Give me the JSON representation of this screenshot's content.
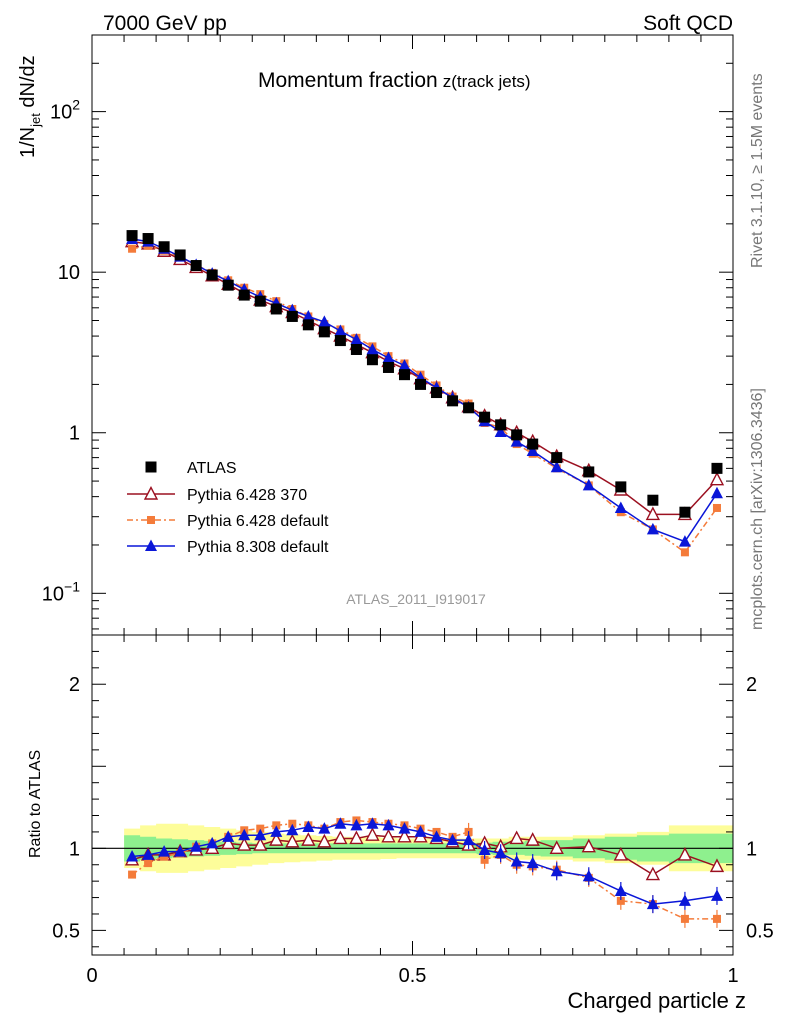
{
  "header": {
    "energy": "7000 GeV pp",
    "process": "Soft QCD",
    "rivet": "Rivet 3.1.10, ≥ 1.5M events",
    "mcplots": "mcplots.cern.ch [arXiv:1306.3436]",
    "analysis": "ATLAS_2011_I919017"
  },
  "chart_data": {
    "type": "line",
    "title": "Momentum fraction",
    "title_sub": "z(track jets)",
    "xlabel": "Charged particle z",
    "ylabel": "1/N_jet dN/dz",
    "ylabel_text": {
      "a": "1/N",
      "b": "jet",
      "c": " dN/dz"
    },
    "ratio_ylabel": "Ratio to ATLAS",
    "xlim": [
      0,
      1
    ],
    "ylim_main": [
      0.055,
      300
    ],
    "ylim_ratio": [
      0.35,
      2.3
    ],
    "yscale_main": "log",
    "x_ticks": [
      "0",
      "0.5",
      "1"
    ],
    "y_ticks_main": [
      {
        "value": 0.1,
        "base": "10",
        "exp": "−1"
      },
      {
        "value": 1,
        "text": "1"
      },
      {
        "value": 10,
        "text": "10"
      },
      {
        "value": 100,
        "base": "10",
        "exp": "2"
      }
    ],
    "y_ticks_ratio": [
      {
        "value": 0.5,
        "text": "0.5"
      },
      {
        "value": 1,
        "text": "1"
      },
      {
        "value": 2,
        "text": "2"
      }
    ],
    "legend_position": "bottom-left",
    "x": [
      0.0625,
      0.0875,
      0.1125,
      0.1375,
      0.1625,
      0.1875,
      0.2125,
      0.2375,
      0.2625,
      0.2875,
      0.3125,
      0.3375,
      0.3625,
      0.3875,
      0.4125,
      0.4375,
      0.4625,
      0.4875,
      0.5125,
      0.5375,
      0.5625,
      0.5875,
      0.6125,
      0.6375,
      0.6625,
      0.6875,
      0.725,
      0.775,
      0.825,
      0.875,
      0.925,
      0.975
    ],
    "bin_edges": [
      0.05,
      0.075,
      0.1,
      0.125,
      0.15,
      0.175,
      0.2,
      0.225,
      0.25,
      0.275,
      0.3,
      0.325,
      0.35,
      0.375,
      0.4,
      0.425,
      0.45,
      0.475,
      0.5,
      0.525,
      0.55,
      0.575,
      0.6,
      0.625,
      0.65,
      0.675,
      0.7,
      0.75,
      0.8,
      0.85,
      0.9,
      0.95,
      1.0
    ],
    "series": [
      {
        "name": "ATLAS",
        "color": "#000000",
        "marker": "square",
        "values": [
          16.9,
          16.2,
          14.4,
          12.8,
          11.0,
          9.6,
          8.3,
          7.2,
          6.6,
          5.9,
          5.3,
          4.7,
          4.25,
          3.75,
          3.3,
          2.85,
          2.55,
          2.3,
          2.0,
          1.78,
          1.58,
          1.43,
          1.25,
          1.12,
          0.97,
          0.85,
          0.7,
          0.57,
          0.46,
          0.38,
          0.32,
          0.6
        ]
      },
      {
        "name": "Pythia 6.428 370",
        "color": "#9b1020",
        "marker": "open-triangle",
        "values": [
          15.5,
          15.0,
          13.5,
          12.0,
          10.7,
          9.5,
          8.4,
          7.4,
          6.7,
          6.1,
          5.6,
          5.0,
          4.45,
          4.0,
          3.55,
          3.15,
          2.78,
          2.5,
          2.17,
          1.9,
          1.65,
          1.45,
          1.27,
          1.12,
          1.0,
          0.88,
          0.71,
          0.58,
          0.44,
          0.31,
          0.31,
          0.51
        ]
      },
      {
        "name": "Pythia 6.428 default",
        "color": "#f47b3a",
        "marker": "square",
        "values": [
          14.0,
          14.6,
          13.6,
          12.4,
          11.1,
          9.9,
          8.9,
          8.0,
          7.3,
          6.6,
          5.9,
          5.3,
          4.75,
          4.4,
          3.9,
          3.45,
          3.0,
          2.7,
          2.3,
          1.97,
          1.68,
          1.52,
          1.15,
          1.08,
          0.85,
          0.74,
          0.6,
          0.47,
          0.32,
          0.25,
          0.18,
          0.34
        ]
      },
      {
        "name": "Pythia 8.308 default",
        "color": "#0a16d8",
        "marker": "triangle",
        "values": [
          16.1,
          15.5,
          14.0,
          12.5,
          11.1,
          9.8,
          8.8,
          7.8,
          7.0,
          6.4,
          5.8,
          5.3,
          4.9,
          4.3,
          3.8,
          3.3,
          2.92,
          2.62,
          2.2,
          1.91,
          1.65,
          1.44,
          1.18,
          1.01,
          0.88,
          0.77,
          0.61,
          0.47,
          0.34,
          0.25,
          0.21,
          0.42
        ]
      }
    ],
    "ratio_series": [
      {
        "name": "Pythia 6.428 370",
        "values": [
          0.93,
          0.96,
          0.96,
          0.98,
          0.99,
          1.0,
          1.03,
          1.02,
          1.02,
          1.05,
          1.04,
          1.05,
          1.04,
          1.06,
          1.06,
          1.08,
          1.07,
          1.07,
          1.07,
          1.06,
          1.04,
          1.02,
          1.03,
          1.01,
          1.06,
          1.05,
          1.0,
          1.01,
          0.96,
          0.84,
          0.96,
          0.89
        ]
      },
      {
        "name": "Pythia 6.428 default",
        "values": [
          0.84,
          0.91,
          0.95,
          0.97,
          1.01,
          1.03,
          1.07,
          1.11,
          1.12,
          1.14,
          1.15,
          1.14,
          1.12,
          1.16,
          1.17,
          1.16,
          1.15,
          1.14,
          1.12,
          1.1,
          1.07,
          1.1,
          0.93,
          0.96,
          0.9,
          0.89,
          0.87,
          0.82,
          0.68,
          0.66,
          0.57,
          0.57
        ]
      },
      {
        "name": "Pythia 8.308 default",
        "values": [
          0.95,
          0.96,
          0.98,
          0.98,
          1.01,
          1.03,
          1.07,
          1.08,
          1.08,
          1.1,
          1.11,
          1.13,
          1.12,
          1.15,
          1.14,
          1.15,
          1.14,
          1.12,
          1.1,
          1.07,
          1.05,
          1.05,
          0.99,
          0.97,
          0.92,
          0.91,
          0.86,
          0.83,
          0.74,
          0.66,
          0.68,
          0.71
        ]
      }
    ],
    "band_inner": [
      0.08,
      0.07,
      0.06,
      0.055,
      0.05,
      0.045,
      0.04,
      0.035,
      0.03,
      0.03,
      0.03,
      0.03,
      0.03,
      0.03,
      0.03,
      0.03,
      0.03,
      0.03,
      0.03,
      0.03,
      0.03,
      0.03,
      0.035,
      0.04,
      0.04,
      0.045,
      0.05,
      0.06,
      0.07,
      0.08,
      0.09,
      0.09
    ],
    "band_outer": [
      0.12,
      0.14,
      0.15,
      0.15,
      0.14,
      0.13,
      0.12,
      0.11,
      0.1,
      0.09,
      0.085,
      0.08,
      0.075,
      0.07,
      0.07,
      0.07,
      0.065,
      0.06,
      0.06,
      0.06,
      0.06,
      0.06,
      0.06,
      0.06,
      0.07,
      0.07,
      0.07,
      0.08,
      0.09,
      0.1,
      0.14,
      0.14
    ],
    "band_colors": {
      "outer": "#fdfd9a",
      "inner": "#8ef08e"
    }
  }
}
